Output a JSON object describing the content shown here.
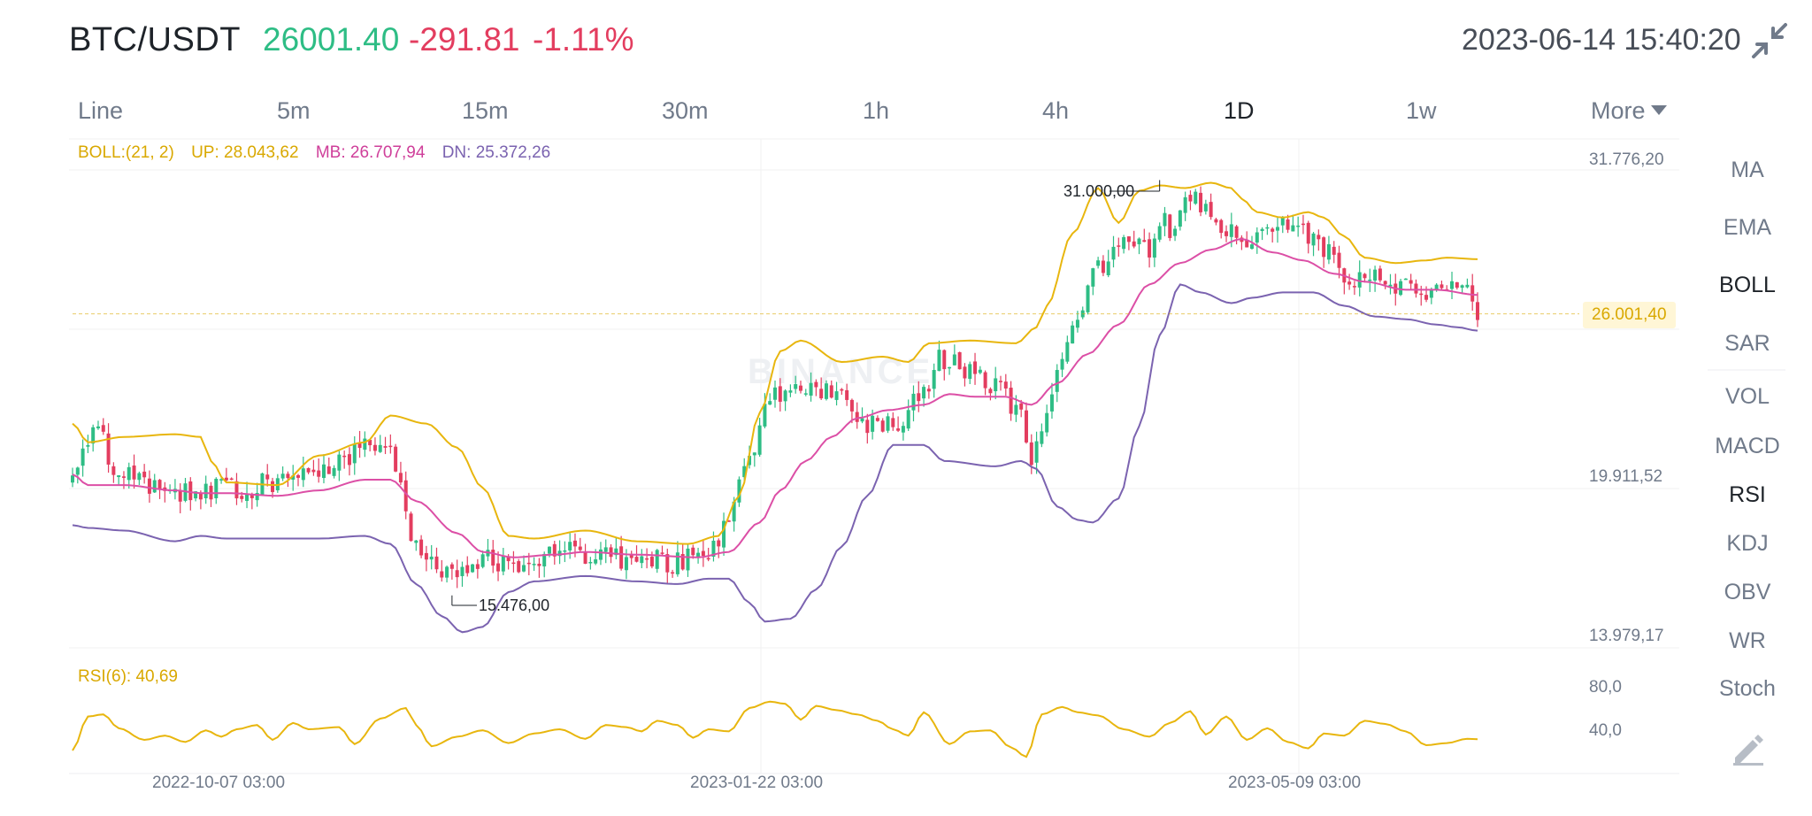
{
  "header": {
    "pair": "BTC/USDT",
    "last_price": "26001.40",
    "change": "-291.81",
    "change_pct": "-1.11%",
    "datetime": "2023-06-14 15:40:20"
  },
  "icons": {
    "exit_fullscreen": "shrink-arrows-icon",
    "draw": "pencil-icon"
  },
  "tabs": [
    {
      "label": "Line",
      "active": false
    },
    {
      "label": "5m",
      "active": false
    },
    {
      "label": "15m",
      "active": false
    },
    {
      "label": "30m",
      "active": false
    },
    {
      "label": "1h",
      "active": false
    },
    {
      "label": "4h",
      "active": false
    },
    {
      "label": "1D",
      "active": true
    },
    {
      "label": "1w",
      "active": false
    },
    {
      "label": "More",
      "active": false
    }
  ],
  "indicators": [
    {
      "label": "MA",
      "active": false
    },
    {
      "label": "EMA",
      "active": false
    },
    {
      "label": "BOLL",
      "active": true
    },
    {
      "label": "SAR",
      "active": false
    },
    {
      "label": "VOL",
      "active": false
    },
    {
      "label": "MACD",
      "active": false
    },
    {
      "label": "RSI",
      "active": true
    },
    {
      "label": "KDJ",
      "active": false
    },
    {
      "label": "OBV",
      "active": false
    },
    {
      "label": "WR",
      "active": false
    },
    {
      "label": "Stoch",
      "active": false
    }
  ],
  "legend": {
    "boll": "BOLL:(21, 2)",
    "up": "UP: 28.043,62",
    "mb": "MB: 26.707,94",
    "dn": "DN: 25.372,26",
    "rsi": "RSI(6): 40,69"
  },
  "watermark": "BINANCE",
  "colors": {
    "up_candle": "#2ebd85",
    "down_candle": "#e33d5f",
    "boll_up": "#e8b60e",
    "boll_mb": "#dc4fa6",
    "boll_dn": "#7b63b0",
    "rsi": "#e8b60e",
    "price_tag": "#d9a800"
  },
  "chart_data": {
    "type": "candlestick",
    "price_axis": {
      "ticks": [
        "31.776,20",
        "19.911,52",
        "13.979,17"
      ],
      "tick_values": [
        31776.2,
        19911.52,
        13979.17
      ],
      "range": [
        13979.17,
        31776.2
      ]
    },
    "rsi_axis": {
      "ticks": [
        "80,0",
        "40,0"
      ],
      "tick_values": [
        80,
        40
      ],
      "range": [
        10,
        95
      ]
    },
    "x_labels": [
      {
        "label": "2022-10-07 03:00",
        "index": 27
      },
      {
        "label": "2023-01-22 03:00",
        "index": 134
      },
      {
        "label": "2023-05-09 03:00",
        "index": 241
      }
    ],
    "current_price_label": "26.001,40",
    "current_price": 26001.4,
    "annotations": [
      {
        "text": "31.000,00",
        "index": 212,
        "price": 31000
      },
      {
        "text": "15.476,00",
        "index": 74,
        "price": 15476
      }
    ],
    "candle_count": 275,
    "close_anchors": [
      [
        0,
        19600
      ],
      [
        4,
        21800
      ],
      [
        9,
        20000
      ],
      [
        22,
        19300
      ],
      [
        28,
        19400
      ],
      [
        38,
        19600
      ],
      [
        44,
        19700
      ],
      [
        48,
        20300
      ],
      [
        60,
        21200
      ],
      [
        63,
        20400
      ],
      [
        66,
        17400
      ],
      [
        73,
        16400
      ],
      [
        80,
        16900
      ],
      [
        86,
        16700
      ],
      [
        92,
        17000
      ],
      [
        97,
        17400
      ],
      [
        100,
        16900
      ],
      [
        107,
        16800
      ],
      [
        110,
        16900
      ],
      [
        118,
        16700
      ],
      [
        122,
        16900
      ],
      [
        126,
        17600
      ],
      [
        131,
        20200
      ],
      [
        136,
        22900
      ],
      [
        140,
        23100
      ],
      [
        146,
        23100
      ],
      [
        150,
        23200
      ],
      [
        155,
        21800
      ],
      [
        160,
        22000
      ],
      [
        166,
        23000
      ],
      [
        169,
        24400
      ],
      [
        174,
        23900
      ],
      [
        180,
        23300
      ],
      [
        185,
        22300
      ],
      [
        187,
        20600
      ],
      [
        190,
        22500
      ],
      [
        195,
        25400
      ],
      [
        200,
        27700
      ],
      [
        205,
        28500
      ],
      [
        210,
        28400
      ],
      [
        212,
        29700
      ],
      [
        214,
        29000
      ],
      [
        216,
        30200
      ],
      [
        220,
        30100
      ],
      [
        224,
        29300
      ],
      [
        228,
        28500
      ],
      [
        232,
        29200
      ],
      [
        238,
        29200
      ],
      [
        242,
        28900
      ],
      [
        245,
        28400
      ],
      [
        249,
        27400
      ],
      [
        255,
        27200
      ],
      [
        260,
        27200
      ],
      [
        264,
        26700
      ],
      [
        268,
        27300
      ],
      [
        272,
        26800
      ],
      [
        274,
        26001
      ]
    ],
    "boll_upper_anchors": [
      [
        0,
        21900
      ],
      [
        3,
        21200
      ],
      [
        10,
        21400
      ],
      [
        20,
        21500
      ],
      [
        25,
        21400
      ],
      [
        27,
        20500
      ],
      [
        30,
        19700
      ],
      [
        40,
        19600
      ],
      [
        48,
        20700
      ],
      [
        57,
        21200
      ],
      [
        62,
        22200
      ],
      [
        69,
        21900
      ],
      [
        75,
        21000
      ],
      [
        80,
        19500
      ],
      [
        85,
        17700
      ],
      [
        90,
        17600
      ],
      [
        100,
        17900
      ],
      [
        110,
        17500
      ],
      [
        120,
        17400
      ],
      [
        126,
        17700
      ],
      [
        130,
        19200
      ],
      [
        134,
        22300
      ],
      [
        138,
        24600
      ],
      [
        142,
        25000
      ],
      [
        150,
        24200
      ],
      [
        158,
        24400
      ],
      [
        163,
        24200
      ],
      [
        167,
        24900
      ],
      [
        175,
        25000
      ],
      [
        184,
        24900
      ],
      [
        188,
        25500
      ],
      [
        190,
        26300
      ],
      [
        195,
        29000
      ],
      [
        200,
        30700
      ],
      [
        204,
        29400
      ],
      [
        208,
        30600
      ],
      [
        212,
        30800
      ],
      [
        217,
        30700
      ],
      [
        222,
        30900
      ],
      [
        226,
        30700
      ],
      [
        228,
        30300
      ],
      [
        231,
        29800
      ],
      [
        236,
        29600
      ],
      [
        241,
        29800
      ],
      [
        244,
        29600
      ],
      [
        248,
        28900
      ],
      [
        252,
        28100
      ],
      [
        258,
        27900
      ],
      [
        264,
        28000
      ],
      [
        268,
        28100
      ],
      [
        274,
        28043
      ]
    ],
    "boll_mid_anchors": [
      [
        0,
        20000
      ],
      [
        3,
        19600
      ],
      [
        10,
        19600
      ],
      [
        20,
        19400
      ],
      [
        25,
        19300
      ],
      [
        30,
        19300
      ],
      [
        40,
        19200
      ],
      [
        48,
        19400
      ],
      [
        57,
        19800
      ],
      [
        62,
        19800
      ],
      [
        67,
        19000
      ],
      [
        75,
        17800
      ],
      [
        80,
        17100
      ],
      [
        86,
        16900
      ],
      [
        94,
        17000
      ],
      [
        100,
        17100
      ],
      [
        110,
        17000
      ],
      [
        122,
        16900
      ],
      [
        128,
        17100
      ],
      [
        134,
        18200
      ],
      [
        138,
        19400
      ],
      [
        143,
        20500
      ],
      [
        148,
        21400
      ],
      [
        153,
        22100
      ],
      [
        159,
        22400
      ],
      [
        166,
        22600
      ],
      [
        171,
        23000
      ],
      [
        176,
        22900
      ],
      [
        182,
        22900
      ],
      [
        187,
        22600
      ],
      [
        192,
        23400
      ],
      [
        198,
        24500
      ],
      [
        204,
        25600
      ],
      [
        210,
        27100
      ],
      [
        216,
        27900
      ],
      [
        222,
        28400
      ],
      [
        228,
        28800
      ],
      [
        234,
        28300
      ],
      [
        240,
        28000
      ],
      [
        246,
        27500
      ],
      [
        252,
        27200
      ],
      [
        260,
        26900
      ],
      [
        266,
        26900
      ],
      [
        274,
        26708
      ]
    ],
    "boll_lower_anchors": [
      [
        0,
        18100
      ],
      [
        3,
        18000
      ],
      [
        10,
        17900
      ],
      [
        20,
        17500
      ],
      [
        25,
        17700
      ],
      [
        30,
        17600
      ],
      [
        40,
        17600
      ],
      [
        48,
        17600
      ],
      [
        57,
        17700
      ],
      [
        62,
        17400
      ],
      [
        67,
        15900
      ],
      [
        72,
        14700
      ],
      [
        76,
        14100
      ],
      [
        80,
        14300
      ],
      [
        85,
        15600
      ],
      [
        90,
        16000
      ],
      [
        100,
        16200
      ],
      [
        110,
        16000
      ],
      [
        118,
        15900
      ],
      [
        124,
        16100
      ],
      [
        128,
        16100
      ],
      [
        132,
        15200
      ],
      [
        135,
        14500
      ],
      [
        140,
        14600
      ],
      [
        145,
        15700
      ],
      [
        150,
        17300
      ],
      [
        155,
        19200
      ],
      [
        160,
        21100
      ],
      [
        166,
        21100
      ],
      [
        170,
        20500
      ],
      [
        180,
        20300
      ],
      [
        185,
        20500
      ],
      [
        188,
        20200
      ],
      [
        192,
        18800
      ],
      [
        196,
        18300
      ],
      [
        199,
        18200
      ],
      [
        204,
        19100
      ],
      [
        208,
        21800
      ],
      [
        212,
        25200
      ],
      [
        216,
        27100
      ],
      [
        220,
        26800
      ],
      [
        226,
        26400
      ],
      [
        230,
        26600
      ],
      [
        236,
        26800
      ],
      [
        242,
        26800
      ],
      [
        248,
        26300
      ],
      [
        254,
        25900
      ],
      [
        260,
        25800
      ],
      [
        266,
        25600
      ],
      [
        270,
        25500
      ],
      [
        274,
        25372
      ]
    ],
    "rsi_anchors": [
      [
        0,
        30
      ],
      [
        3,
        62
      ],
      [
        6,
        64
      ],
      [
        9,
        51
      ],
      [
        14,
        40
      ],
      [
        18,
        44
      ],
      [
        22,
        38
      ],
      [
        26,
        49
      ],
      [
        29,
        43
      ],
      [
        32,
        50
      ],
      [
        36,
        54
      ],
      [
        39,
        40
      ],
      [
        43,
        56
      ],
      [
        46,
        50
      ],
      [
        52,
        52
      ],
      [
        55,
        36
      ],
      [
        60,
        60
      ],
      [
        65,
        70
      ],
      [
        67,
        54
      ],
      [
        70,
        34
      ],
      [
        75,
        43
      ],
      [
        80,
        49
      ],
      [
        85,
        37
      ],
      [
        90,
        46
      ],
      [
        95,
        50
      ],
      [
        100,
        41
      ],
      [
        104,
        54
      ],
      [
        108,
        52
      ],
      [
        111,
        48
      ],
      [
        114,
        58
      ],
      [
        118,
        54
      ],
      [
        121,
        42
      ],
      [
        124,
        50
      ],
      [
        128,
        48
      ],
      [
        132,
        70
      ],
      [
        136,
        76
      ],
      [
        139,
        74
      ],
      [
        142,
        59
      ],
      [
        145,
        72
      ],
      [
        149,
        68
      ],
      [
        153,
        64
      ],
      [
        157,
        58
      ],
      [
        160,
        50
      ],
      [
        163,
        44
      ],
      [
        166,
        66
      ],
      [
        171,
        36
      ],
      [
        175,
        48
      ],
      [
        179,
        49
      ],
      [
        183,
        33
      ],
      [
        186,
        24
      ],
      [
        189,
        64
      ],
      [
        193,
        71
      ],
      [
        196,
        66
      ],
      [
        200,
        63
      ],
      [
        205,
        50
      ],
      [
        210,
        43
      ],
      [
        214,
        56
      ],
      [
        218,
        67
      ],
      [
        221,
        45
      ],
      [
        225,
        62
      ],
      [
        229,
        40
      ],
      [
        233,
        51
      ],
      [
        237,
        38
      ],
      [
        241,
        32
      ],
      [
        244,
        46
      ],
      [
        248,
        44
      ],
      [
        252,
        58
      ],
      [
        256,
        55
      ],
      [
        260,
        48
      ],
      [
        264,
        35
      ],
      [
        268,
        37
      ],
      [
        272,
        41
      ],
      [
        274,
        40.69
      ]
    ]
  }
}
